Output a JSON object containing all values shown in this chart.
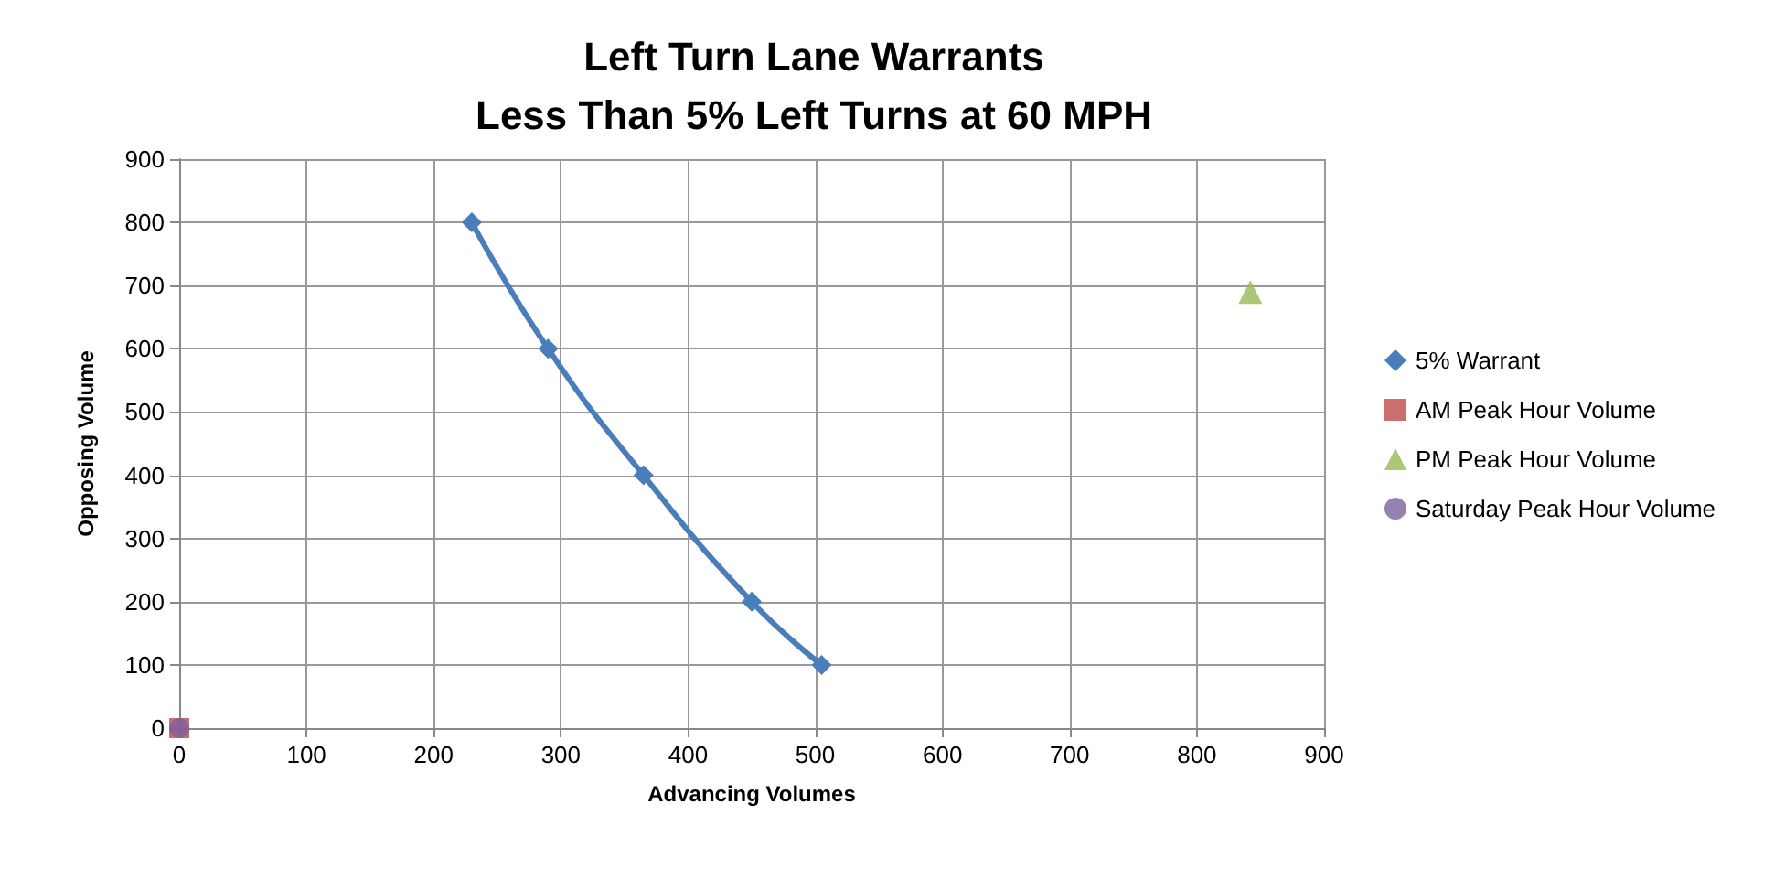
{
  "chart_data": {
    "type": "scatter",
    "title": "Left Turn Lane Warrants\nLess Than 5% Left Turns at 60 MPH",
    "xlabel": "Advancing Volumes",
    "ylabel": "Opposing Volume",
    "xlim": [
      0,
      900
    ],
    "xticks": [
      0,
      100,
      200,
      300,
      400,
      500,
      600,
      700,
      800,
      900
    ],
    "ylim": [
      0,
      900
    ],
    "yticks": [
      0,
      100,
      200,
      300,
      400,
      500,
      600,
      700,
      800,
      900
    ],
    "grid": true,
    "legend": "right",
    "series": [
      {
        "name": "5% Warrant",
        "type": "line",
        "marker": "diamond",
        "color": "#4a7ebb",
        "x": [
          230,
          290,
          365,
          450,
          505
        ],
        "values": [
          800,
          600,
          400,
          200,
          100
        ]
      },
      {
        "name": "AM Peak Hour Volume",
        "marker": "square",
        "color": "#be4b48",
        "x": [
          0
        ],
        "values": [
          0
        ]
      },
      {
        "name": "PM Peak Hour Volume",
        "marker": "triangle",
        "color": "#98b954",
        "x": [
          842
        ],
        "values": [
          690
        ]
      },
      {
        "name": "Saturday Peak Hour Volume",
        "marker": "circle",
        "color": "#7d60a0",
        "x": [
          0
        ],
        "values": [
          0
        ]
      }
    ]
  }
}
